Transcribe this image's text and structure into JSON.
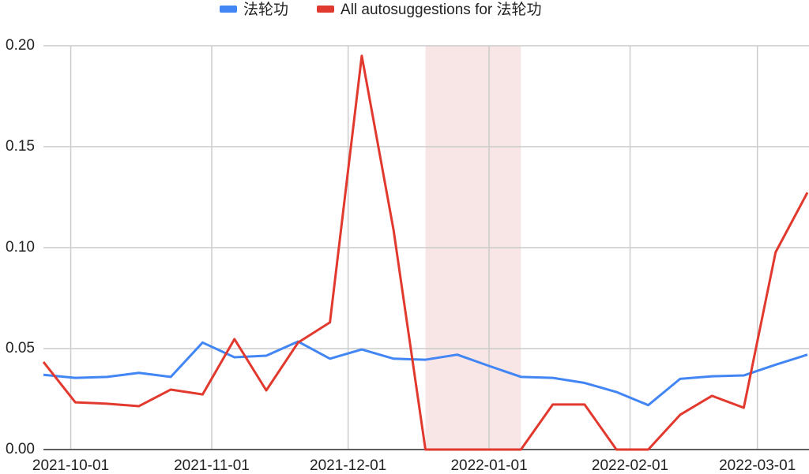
{
  "chart_data": {
    "type": "line",
    "x": [
      "2021-09-25",
      "2021-10-02",
      "2021-10-09",
      "2021-10-16",
      "2021-10-23",
      "2021-10-30",
      "2021-11-06",
      "2021-11-13",
      "2021-11-20",
      "2021-11-27",
      "2021-12-04",
      "2021-12-11",
      "2021-12-18",
      "2021-12-25",
      "2022-01-01",
      "2022-01-08",
      "2022-01-15",
      "2022-01-22",
      "2022-01-29",
      "2022-02-05",
      "2022-02-12",
      "2022-02-19",
      "2022-02-26",
      "2022-03-05",
      "2022-03-12"
    ],
    "series": [
      {
        "name": "法轮功",
        "color": "#4285f4",
        "values": [
          0.037,
          0.0355,
          0.036,
          0.038,
          0.036,
          0.053,
          0.0457,
          0.0465,
          0.0535,
          0.045,
          0.0496,
          0.045,
          0.0445,
          0.047,
          0.0414,
          0.036,
          0.0355,
          0.033,
          0.0285,
          0.022,
          0.035,
          0.0363,
          0.0367,
          0.042,
          0.047
        ]
      },
      {
        "name": "All autosuggestions for 法轮功",
        "color": "#e2392e",
        "values": [
          0.0434,
          0.0234,
          0.0227,
          0.0215,
          0.0297,
          0.0273,
          0.0547,
          0.0293,
          0.053,
          0.063,
          0.195,
          0.1086,
          0,
          0,
          0,
          0,
          0.0223,
          0.0223,
          0,
          0,
          0.0172,
          0.0266,
          0.0207,
          0.0977,
          0.1273
        ]
      }
    ],
    "xlim": [
      "2021-09-25",
      "2022-03-12"
    ],
    "xticks": [
      "2021-10-01",
      "2021-11-01",
      "2021-12-01",
      "2022-01-01",
      "2022-02-01",
      "2022-03-01"
    ],
    "ylim": [
      0,
      0.2
    ],
    "yticks": [
      {
        "value": 0,
        "label": "0.00"
      },
      {
        "value": 0.05,
        "label": "0.05"
      },
      {
        "value": 0.1,
        "label": "0.10"
      },
      {
        "value": 0.15,
        "label": "0.15"
      },
      {
        "value": 0.2,
        "label": "0.20"
      }
    ],
    "highlight": [
      "2021-12-18",
      "2022-01-08"
    ],
    "highlight_color": "#f8e6e6",
    "grid": true,
    "legend": "top"
  }
}
